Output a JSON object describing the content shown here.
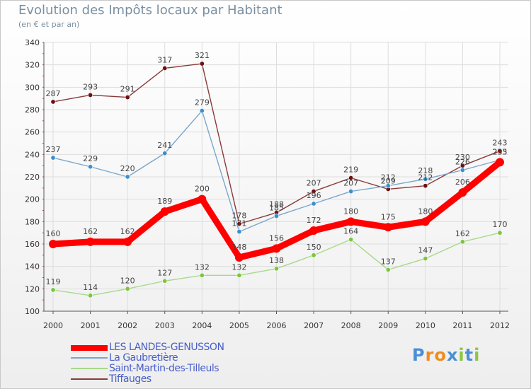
{
  "header": {
    "title": "Evolution des Impôts locaux par Habitant",
    "subtitle": "(en € et par an)"
  },
  "logo": {
    "text": "Proxiti",
    "letters": [
      "P",
      "r",
      "o",
      "x",
      "i",
      "t",
      "i"
    ],
    "colors": [
      "#4a8fd6",
      "#f08c1e",
      "#f08c1e",
      "#4a8fd6",
      "#8cc63e",
      "#4a8fd6",
      "#8cc63e"
    ]
  },
  "chart_data": {
    "type": "line",
    "title": "Evolution des Impôts locaux par Habitant",
    "subtitle": "(en € et par an)",
    "xlabel": "",
    "ylabel": "",
    "x": [
      "2000",
      "2001",
      "2002",
      "2003",
      "2004",
      "2005",
      "2006",
      "2007",
      "2008",
      "2009",
      "2010",
      "2011",
      "2012"
    ],
    "ylim": [
      100,
      340
    ],
    "yticks": [
      100,
      120,
      140,
      160,
      180,
      200,
      220,
      240,
      260,
      280,
      300,
      320,
      340
    ],
    "grid": true,
    "legend_position": "bottom-left",
    "series": [
      {
        "name": "LES LANDES-GENUSSON",
        "color": "#ff0000",
        "marker": "#ff0000",
        "values": [
          160,
          162,
          162,
          189,
          200,
          148,
          156,
          172,
          180,
          175,
          180,
          206,
          233
        ],
        "labels": [
          "160",
          "162",
          "162",
          "189",
          "200",
          "148",
          "156",
          "172",
          "180",
          "175",
          "180",
          "206",
          "233"
        ],
        "emphasis": true
      },
      {
        "name": "La Gaubretière",
        "color": "#7aa6cc",
        "marker": "#3a8fd0",
        "values": [
          237,
          229,
          220,
          241,
          279,
          171,
          185,
          196,
          207,
          212,
          218,
          226,
          235
        ],
        "labels": [
          "237",
          "229",
          "220",
          "241",
          "279",
          "171",
          "185",
          "196",
          "207",
          "212",
          "218",
          "226",
          "235"
        ]
      },
      {
        "name": "Saint-Martin-des-Tilleuls",
        "color": "#a8d98a",
        "marker": "#7cc63e",
        "values": [
          119,
          114,
          120,
          127,
          132,
          132,
          138,
          150,
          164,
          137,
          147,
          162,
          170
        ],
        "labels": [
          "119",
          "114",
          "120",
          "127",
          "132",
          "132",
          "138",
          "150",
          "164",
          "137",
          "147",
          "162",
          "170"
        ]
      },
      {
        "name": "Tiffauges",
        "color": "#8a3a3a",
        "marker": "#6e1010",
        "values": [
          287,
          293,
          291,
          317,
          321,
          178,
          188,
          207,
          219,
          209,
          212,
          230,
          243
        ],
        "labels": [
          "287",
          "293",
          "291",
          "317",
          "321",
          "178",
          "188",
          "207",
          "219",
          "209",
          "212",
          "230",
          "243"
        ]
      }
    ]
  }
}
